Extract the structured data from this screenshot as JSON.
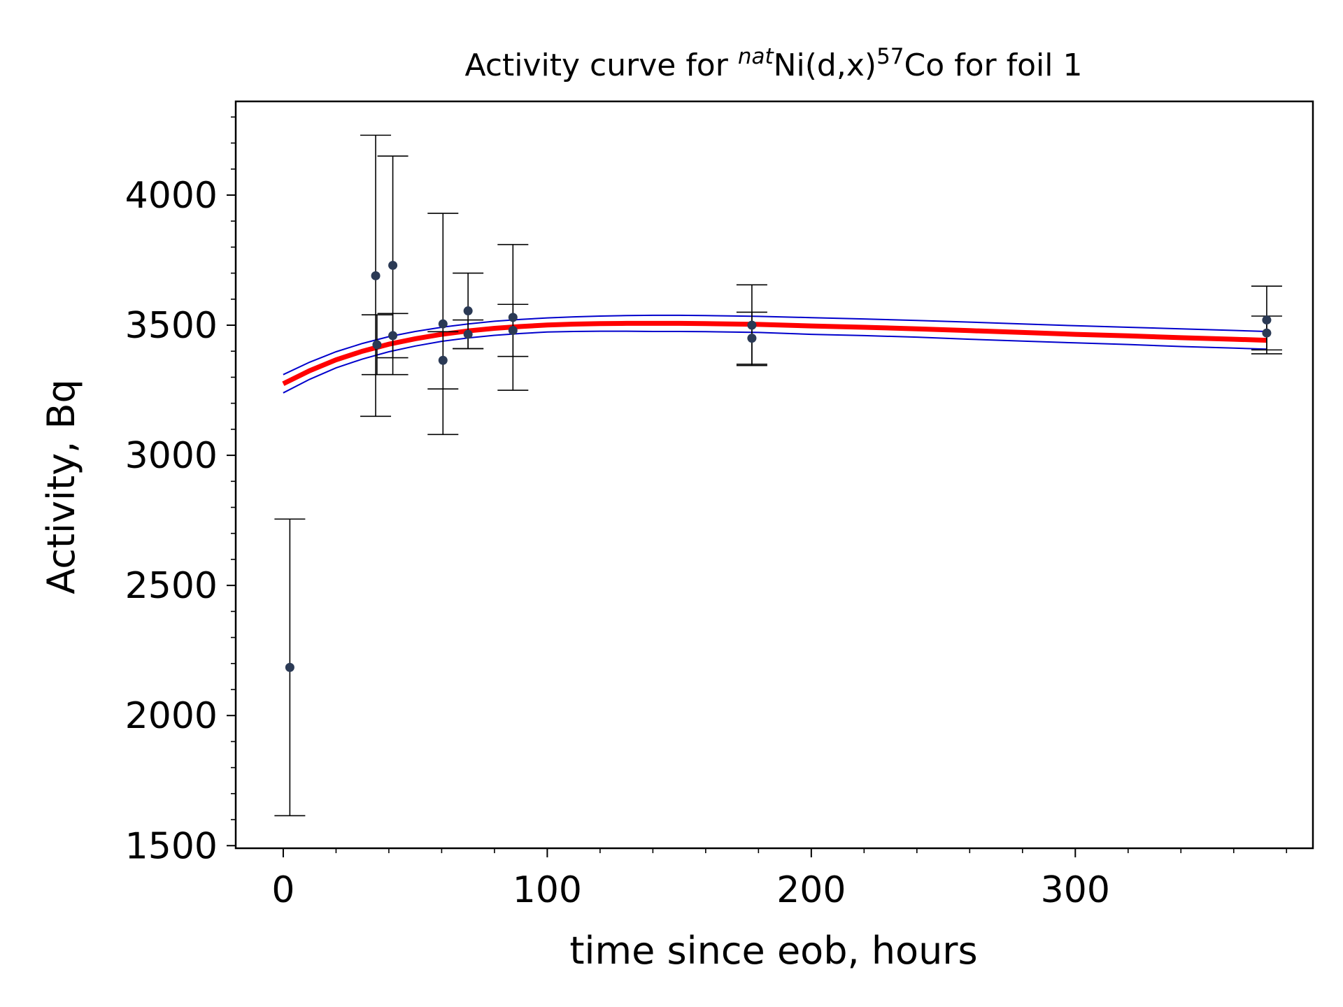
{
  "chart_data": {
    "type": "scatter",
    "title": {
      "prefix": "Activity curve for ",
      "sup1": "nat",
      "mid": "Ni(d,x)",
      "sup2": "57",
      "suffix": "Co for foil 1"
    },
    "xlabel": "time since eob, hours",
    "ylabel": "Activity, Bq",
    "xlim": [
      -18,
      390
    ],
    "ylim": [
      1490,
      4360
    ],
    "x_ticks": [
      0,
      100,
      200,
      300
    ],
    "y_ticks": [
      1500,
      2000,
      2500,
      3000,
      3500,
      4000
    ],
    "grid": false,
    "legend": "none",
    "colors": {
      "points": "#2b3a55",
      "errorbars": "#000000",
      "fit": "#ff0000",
      "uncertainty_band": "#0000cc"
    },
    "measurements": [
      {
        "x": 2.5,
        "y": 2185,
        "err": 570
      },
      {
        "x": 35,
        "y": 3690,
        "err": 540
      },
      {
        "x": 35.5,
        "y": 3425,
        "err": 115
      },
      {
        "x": 41.5,
        "y": 3730,
        "err": 420
      },
      {
        "x": 41.5,
        "y": 3460,
        "err": 85
      },
      {
        "x": 60.5,
        "y": 3505,
        "err": 425
      },
      {
        "x": 60.5,
        "y": 3365,
        "err": 110
      },
      {
        "x": 70,
        "y": 3555,
        "err": 145
      },
      {
        "x": 70,
        "y": 3465,
        "err": 55
      },
      {
        "x": 87,
        "y": 3530,
        "err": 280
      },
      {
        "x": 87,
        "y": 3480,
        "err": 100
      },
      {
        "x": 177.5,
        "y": 3500,
        "err": 155
      },
      {
        "x": 177.5,
        "y": 3450,
        "err": 100
      },
      {
        "x": 372.5,
        "y": 3520,
        "err": 130
      },
      {
        "x": 372.5,
        "y": 3470,
        "err": 65
      }
    ],
    "fit_curve": {
      "x": [
        0,
        10,
        20,
        30,
        40,
        50,
        60,
        70,
        80,
        90,
        100,
        110,
        120,
        130,
        140,
        150,
        160,
        180,
        200,
        220,
        240,
        260,
        280,
        300,
        320,
        340,
        360,
        372.5
      ],
      "y": [
        3275,
        3325,
        3367,
        3400,
        3427,
        3448,
        3465,
        3478,
        3488,
        3495,
        3501,
        3504,
        3506,
        3507,
        3507,
        3507,
        3506,
        3503,
        3497,
        3492,
        3486,
        3479,
        3472,
        3465,
        3459,
        3452,
        3446,
        3442
      ],
      "upper": [
        3310,
        3358,
        3398,
        3430,
        3456,
        3476,
        3492,
        3505,
        3515,
        3522,
        3528,
        3532,
        3535,
        3537,
        3538,
        3538,
        3537,
        3534,
        3529,
        3524,
        3518,
        3512,
        3505,
        3498,
        3492,
        3486,
        3480,
        3476
      ],
      "lower": [
        3240,
        3292,
        3336,
        3370,
        3398,
        3420,
        3438,
        3451,
        3461,
        3468,
        3474,
        3476,
        3477,
        3477,
        3476,
        3476,
        3475,
        3472,
        3465,
        3460,
        3454,
        3446,
        3439,
        3432,
        3426,
        3418,
        3412,
        3408
      ]
    }
  }
}
